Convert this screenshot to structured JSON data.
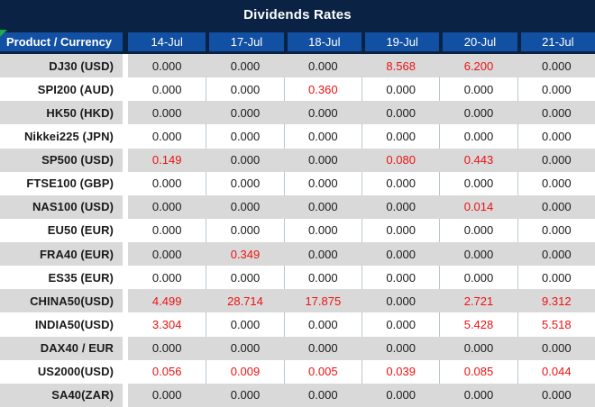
{
  "title": "Dividends Rates",
  "header": {
    "product_label": "Product / Currency",
    "columns": [
      "14-Jul",
      "17-Jul",
      "18-Jul",
      "19-Jul",
      "20-Jul",
      "21-Jul"
    ]
  },
  "zero_value": "0.000",
  "rows": [
    {
      "product": "DJ30 (USD)",
      "values": [
        "0.000",
        "0.000",
        "0.000",
        "8.568",
        "6.200",
        "0.000"
      ]
    },
    {
      "product": "SPI200 (AUD)",
      "values": [
        "0.000",
        "0.000",
        "0.360",
        "0.000",
        "0.000",
        "0.000"
      ]
    },
    {
      "product": "HK50 (HKD)",
      "values": [
        "0.000",
        "0.000",
        "0.000",
        "0.000",
        "0.000",
        "0.000"
      ]
    },
    {
      "product": "Nikkei225 (JPN)",
      "values": [
        "0.000",
        "0.000",
        "0.000",
        "0.000",
        "0.000",
        "0.000"
      ]
    },
    {
      "product": "SP500 (USD)",
      "values": [
        "0.149",
        "0.000",
        "0.000",
        "0.080",
        "0.443",
        "0.000"
      ]
    },
    {
      "product": "FTSE100 (GBP)",
      "values": [
        "0.000",
        "0.000",
        "0.000",
        "0.000",
        "0.000",
        "0.000"
      ]
    },
    {
      "product": "NAS100 (USD)",
      "values": [
        "0.000",
        "0.000",
        "0.000",
        "0.000",
        "0.014",
        "0.000"
      ]
    },
    {
      "product": "EU50 (EUR)",
      "values": [
        "0.000",
        "0.000",
        "0.000",
        "0.000",
        "0.000",
        "0.000"
      ]
    },
    {
      "product": "FRA40 (EUR)",
      "values": [
        "0.000",
        "0.349",
        "0.000",
        "0.000",
        "0.000",
        "0.000"
      ]
    },
    {
      "product": "ES35 (EUR)",
      "values": [
        "0.000",
        "0.000",
        "0.000",
        "0.000",
        "0.000",
        "0.000"
      ]
    },
    {
      "product": "CHINA50(USD)",
      "values": [
        "4.499",
        "28.714",
        "17.875",
        "0.000",
        "2.721",
        "9.312"
      ]
    },
    {
      "product": "INDIA50(USD)",
      "values": [
        "3.304",
        "0.000",
        "0.000",
        "0.000",
        "5.428",
        "5.518"
      ]
    },
    {
      "product": "DAX40 / EUR",
      "values": [
        "0.000",
        "0.000",
        "0.000",
        "0.000",
        "0.000",
        "0.000"
      ]
    },
    {
      "product": "US2000(USD)",
      "values": [
        "0.056",
        "0.009",
        "0.005",
        "0.039",
        "0.085",
        "0.044"
      ]
    },
    {
      "product": "SA40(ZAR)",
      "values": [
        "0.000",
        "0.000",
        "0.000",
        "0.000",
        "0.000",
        "0.000"
      ]
    }
  ],
  "colors": {
    "title_bg": "#0a2243",
    "header_bg": "#1250a4",
    "row_alt_bg": "#d9d9d9",
    "value_red": "#ee1111",
    "text_dark": "#1a1a1a",
    "divider": "#b9c6d2",
    "marker_green": "#21a84c"
  }
}
